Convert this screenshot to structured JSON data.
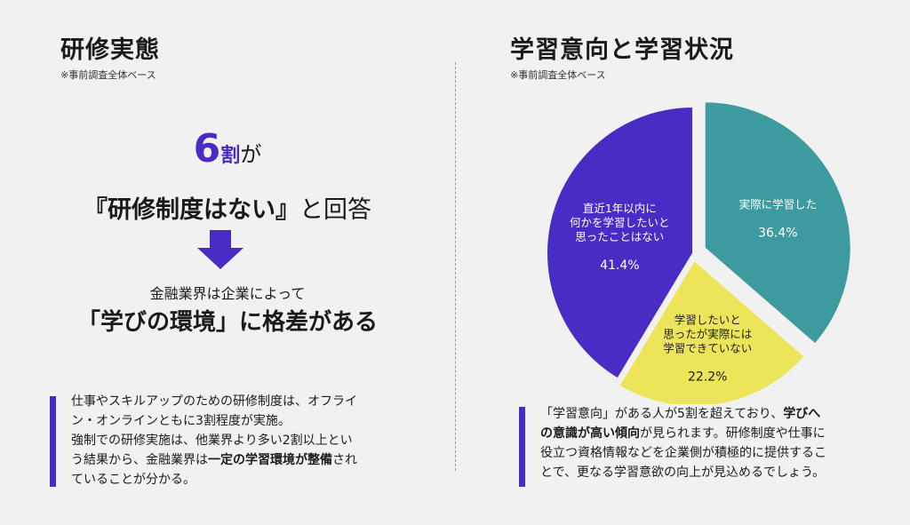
{
  "left": {
    "title": "研修実態",
    "note": "※事前調査全体ベース",
    "big_number": "6",
    "big_unit": "割",
    "big_suffix": "が",
    "quote_main": "『研修制度はない』",
    "quote_suffix": "と回答",
    "sub_caption": "金融業界は企業によって",
    "headline": "「学びの環境」に格差がある",
    "para": {
      "p1": "仕事やスキルアップのための研修制度は、オフライ",
      "p2": "ン・オンラインともに3割程度が実施。",
      "p3": "強制での研修実施は、他業界より多い2割以上とい",
      "p4a": "う結果から、金融業界は",
      "p4b": "一定の学習環境が整備",
      "p4c": "され",
      "p5": "ていることが分かる。"
    }
  },
  "right": {
    "title": "学習意向と学習状況",
    "note": "※事前調査全体ベース",
    "para": {
      "l1a": "「学習意向」がある人が5割を超えており、",
      "l1b": "学びへ",
      "l2a": "の意識が高い傾向",
      "l2b": "が見られます。研修制度や仕事に",
      "l3": "役立つ資格情報などを企業側が積極的に提供するこ",
      "l4": "とで、更なる学習意欲の向上が見込めるでしょう。"
    }
  },
  "colors": {
    "accent": "#4a2bc4",
    "teal": "#3d9a9e",
    "yellow": "#ece55a"
  },
  "chart_data": {
    "type": "pie",
    "title": "",
    "slices": [
      {
        "label_lines": [
          "実際に学習した"
        ],
        "value": 36.4,
        "value_label": "36.4%",
        "color": "#3d9a9e"
      },
      {
        "label_lines": [
          "学習したいと",
          "思ったが実際には",
          "学習できていない"
        ],
        "value": 22.2,
        "value_label": "22.2%",
        "color": "#ece55a"
      },
      {
        "label_lines": [
          "直近1年以内に",
          "何かを学習したいと",
          "思ったことはない"
        ],
        "value": 41.4,
        "value_label": "41.4%",
        "color": "#4a2bc4"
      }
    ]
  }
}
